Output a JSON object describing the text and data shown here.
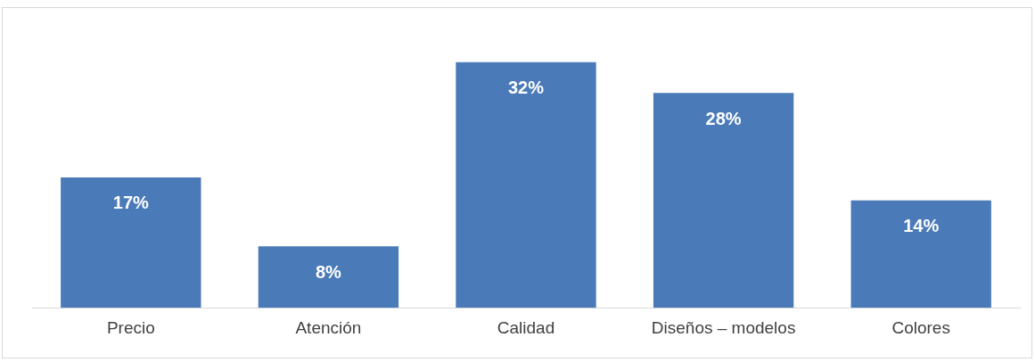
{
  "chart_data": {
    "type": "bar",
    "categories": [
      "Precio",
      "Atención",
      "Calidad",
      "Diseños – modelos",
      "Colores"
    ],
    "values": [
      17,
      8,
      32,
      28,
      14
    ],
    "value_labels": [
      "17%",
      "8%",
      "32%",
      "28%",
      "14%"
    ],
    "color": "#4a7ab8",
    "grid": false,
    "legend": false
  }
}
